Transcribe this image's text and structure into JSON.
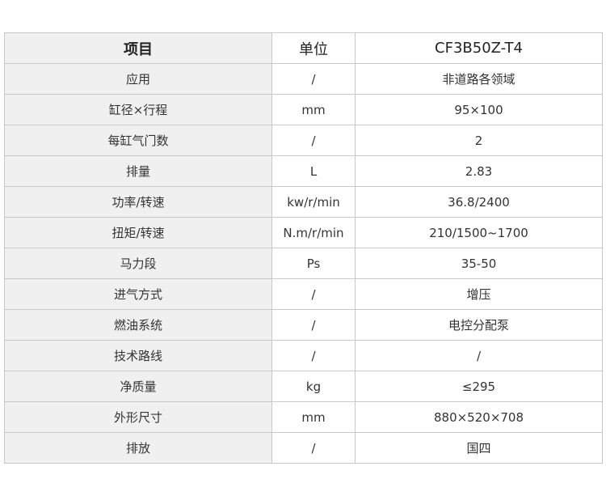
{
  "table": {
    "header": [
      "项目",
      "单位",
      "CF3B50Z-T4"
    ],
    "rows": [
      [
        "应用",
        "/",
        "非道路各领域"
      ],
      [
        "缸径×行程",
        "mm",
        "95×100"
      ],
      [
        "每缸气门数",
        "/",
        "2"
      ],
      [
        "排量",
        "L",
        "2.83"
      ],
      [
        "功率/转速",
        "kw/r/min",
        "36.8/2400"
      ],
      [
        "扭矩/转速",
        "N.m/r/min",
        "210/1500~1700"
      ],
      [
        "马力段",
        "Ps",
        "35-50"
      ],
      [
        "进气方式",
        "/",
        "增压"
      ],
      [
        "燃油系统",
        "/",
        "电控分配泵"
      ],
      [
        "技术路线",
        "/",
        "/"
      ],
      [
        "净质量",
        "kg",
        "≤295"
      ],
      [
        "外形尺寸",
        "mm",
        "880×520×708"
      ],
      [
        "排放",
        "/",
        "国四"
      ]
    ]
  }
}
